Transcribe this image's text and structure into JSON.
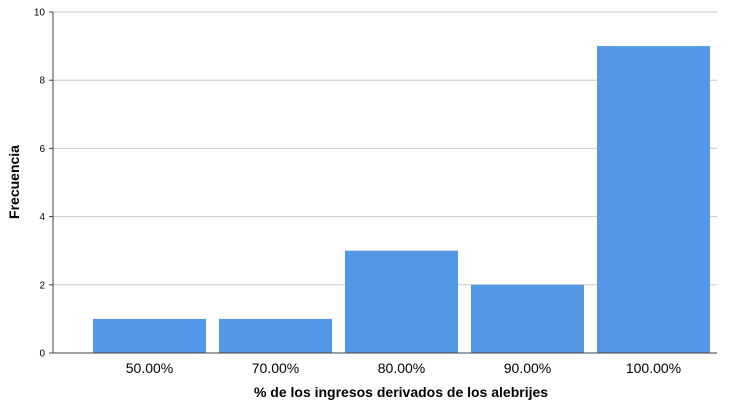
{
  "chart_data": {
    "type": "bar",
    "title": "",
    "xlabel": "% de los ingresos derivados de los alebrijes",
    "ylabel": "Frecuencia",
    "categories": [
      "50.00%",
      "70.00%",
      "80.00%",
      "90.00%",
      "100.00%"
    ],
    "values": [
      1,
      1,
      3,
      2,
      9
    ],
    "ylim": [
      0,
      10
    ],
    "yticks": [
      "0",
      "2",
      "4",
      "6",
      "8",
      "10"
    ],
    "grid": true,
    "legend": "none",
    "colors": {
      "bar": "#5497e7",
      "gridline": "#c8c8c8",
      "axis": "#404040"
    }
  }
}
